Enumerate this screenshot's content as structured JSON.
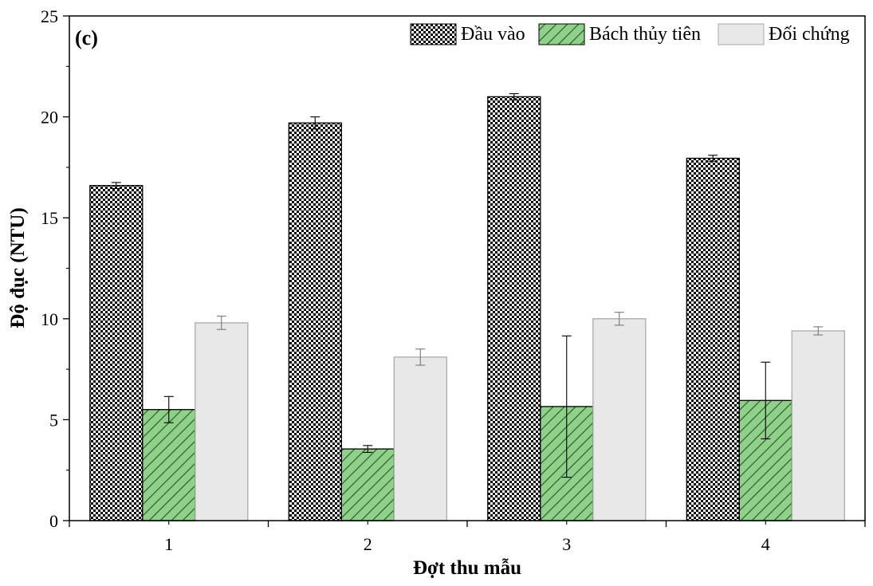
{
  "chart_data": {
    "type": "bar",
    "panel_label": "(c)",
    "xlabel": "Đợt thu mẫu",
    "ylabel": "Độ đục (NTU)",
    "ylim": [
      0,
      25
    ],
    "yticks": [
      "0",
      "5",
      "10",
      "15",
      "20",
      "25"
    ],
    "categories": [
      "1",
      "2",
      "3",
      "4"
    ],
    "series": [
      {
        "name": "Đầu vào",
        "pattern": "checker",
        "color": "#000000",
        "values": [
          16.6,
          19.7,
          21.0,
          17.95
        ],
        "errors": [
          0.15,
          0.3,
          0.15,
          0.15
        ]
      },
      {
        "name": "Bách thủy tiên",
        "pattern": "hatch",
        "color": "#8fd08b",
        "values": [
          5.5,
          3.55,
          5.65,
          5.95
        ],
        "errors": [
          0.65,
          0.17,
          3.5,
          1.9
        ]
      },
      {
        "name": "Đối chứng",
        "pattern": "solid",
        "color": "#e8e8e8",
        "values": [
          9.8,
          8.1,
          10.0,
          9.4
        ],
        "errors": [
          0.33,
          0.4,
          0.32,
          0.2
        ]
      }
    ],
    "legend_position": "top-right",
    "grid": false
  }
}
